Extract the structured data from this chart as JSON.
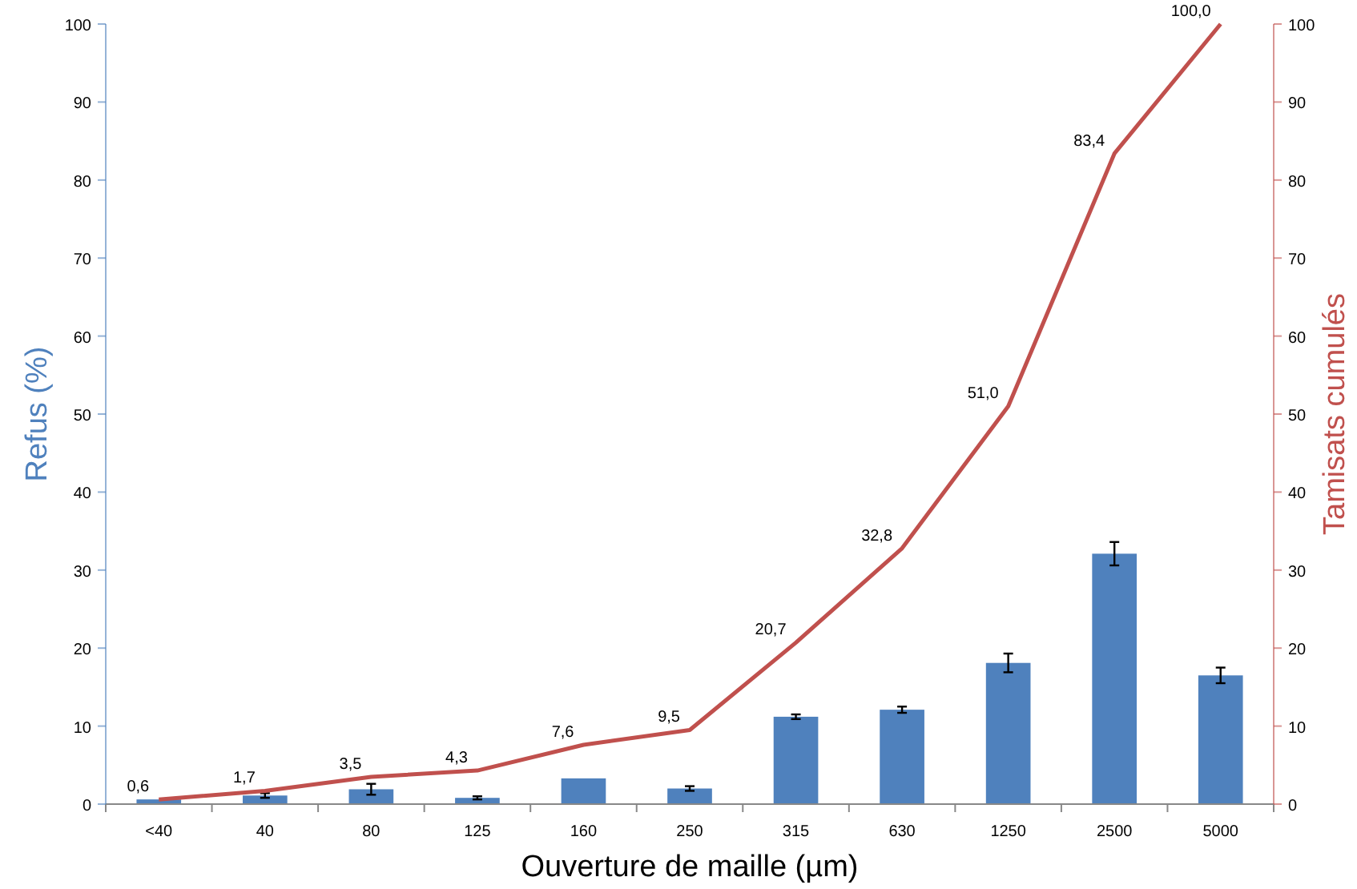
{
  "chart_data": {
    "type": "bar",
    "xlabel": "Ouverture de maille (µm)",
    "ylabel": "Refus (%)",
    "y2label": "Tamisats cumulés",
    "categories": [
      "<40",
      "40",
      "80",
      "125",
      "160",
      "250",
      "315",
      "630",
      "1250",
      "2500",
      "5000"
    ],
    "series": [
      {
        "type": "bar",
        "color": "#4f81bd",
        "values": [
          0.6,
          1.1,
          1.9,
          0.8,
          3.3,
          2.0,
          11.2,
          12.1,
          18.1,
          32.1,
          16.5
        ],
        "errors": [
          null,
          0.3,
          0.7,
          0.2,
          null,
          0.3,
          0.3,
          0.4,
          1.2,
          1.5,
          1.0
        ]
      },
      {
        "type": "line",
        "axis": "y2",
        "color": "#c0504d",
        "values": [
          0.6,
          1.7,
          3.5,
          4.3,
          7.6,
          9.5,
          20.7,
          32.8,
          51.0,
          83.4,
          100.0
        ],
        "value_labels": [
          "0,6",
          "1,7",
          "3,5",
          "4,3",
          "7,6",
          "9,5",
          "20,7",
          "32,8",
          "51,0",
          "83,4",
          "100,0"
        ]
      }
    ],
    "ylim": [
      0,
      100
    ],
    "yticks": [
      0,
      10,
      20,
      30,
      40,
      50,
      60,
      70,
      80,
      90,
      100
    ],
    "y2lim": [
      0,
      100
    ],
    "y2ticks": [
      0,
      10,
      20,
      30,
      40,
      50,
      60,
      70,
      80,
      90,
      100
    ],
    "grid": false,
    "marker": "none"
  }
}
